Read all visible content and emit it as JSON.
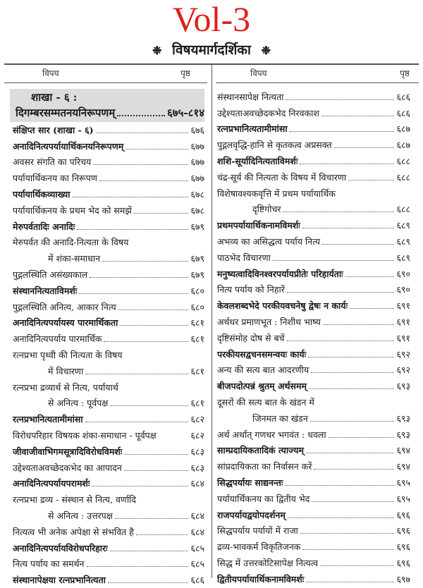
{
  "title": "Vol-3",
  "subtitle": "विषयमार्गदर्शिका",
  "ornament": "❉",
  "accent_color": "#e0201b",
  "columns_header": {
    "subject": "विपय",
    "page": "पृष्ठ"
  },
  "left": {
    "section": {
      "line1": "शाखा - ६ :",
      "line2": "दिगम्बरसम्मतनयनिरूपणम्",
      "page": "६७५-८१४"
    },
    "entries": [
      {
        "text": "संक्षिप्त सार (शाखा - ६)",
        "page": "६७६",
        "bold": true
      },
      {
        "text": "अनादिनित्यपर्यायार्थिकनयनिरूपणम्",
        "page": "६७७",
        "bold": true
      },
      {
        "text": "अवसर संगति का परिचय",
        "page": "६७७"
      },
      {
        "text": "पर्यायार्थिकनय का निरूपण",
        "page": "६७७"
      },
      {
        "text": "पर्यायार्थिकव्याख्या",
        "page": "६७८",
        "bold": true
      },
      {
        "text": "पर्यायार्थिकनय के प्रथम भेद को समझें",
        "page": "६७८"
      },
      {
        "text": "मेरुपर्वतादिः अनादिः",
        "page": "६७९",
        "bold": true
      },
      {
        "text": "मेरुपर्वत की अनादि-नित्यता के विषय",
        "page": ""
      },
      {
        "text": "में शंका-समाधान",
        "page": "६७९",
        "indent": true
      },
      {
        "text": "पुद्गलस्थिति असंख्यकाल",
        "page": "६७९"
      },
      {
        "text": "संस्थाननित्यताविमर्शः",
        "page": "६८०",
        "bold": true
      },
      {
        "text": "पुद्गलस्थिति अनित्य, आकार नित्य",
        "page": "६८०"
      },
      {
        "text": "अनादिनित्यपर्यायस्य पारमार्थिकता",
        "page": "६८१",
        "bold": true
      },
      {
        "text": "अनादिनित्यपर्याय पारमार्थिक",
        "page": "६८१"
      },
      {
        "text": "रत्नप्रभा पृथ्वी की नित्यता के विषय",
        "page": ""
      },
      {
        "text": "में विचारणा",
        "page": "६८१",
        "indent": true
      },
      {
        "text": "रत्नप्रभा द्रव्यार्थ से नित्य, पर्यायार्थ",
        "page": ""
      },
      {
        "text": "से अनित्य : पूर्वपक्ष",
        "page": "६८१",
        "indent": true
      },
      {
        "text": "रत्नप्रभानित्यतामीमांसा",
        "page": "६८२",
        "bold": true
      },
      {
        "text": "विरोधपरिहार विषयक शंका-समाधान - पूर्वपक्ष",
        "page": "६८२",
        "noleader": true
      },
      {
        "text": "जीवाजीवाभिगमसूत्रादिविरोधविमर्शः",
        "page": "६८३",
        "bold": true
      },
      {
        "text": "उद्देश्यताअवच्छेदकभेद का आपादन",
        "page": "६८३"
      },
      {
        "text": "अनादिनित्यपर्यायपरामर्शः",
        "page": "६८४",
        "bold": true
      },
      {
        "text": "रत्नप्रभा द्रव्य - संस्थान से नित्य, वर्णादि",
        "page": ""
      },
      {
        "text": "से अनित्य : उत्तरपक्ष",
        "page": "६८४",
        "indent": true
      },
      {
        "text": "नित्यत्व भी अनेक अपेक्षा से संभवित है",
        "page": "६८४"
      },
      {
        "text": "अनादिनित्यपर्यायविरोधपरिहारः",
        "page": "६८५",
        "bold": true
      },
      {
        "text": "नित्य पर्याय का समर्थन",
        "page": "६८५"
      },
      {
        "text": "संस्थानापेक्षया रत्नप्रभानित्यता",
        "page": "६८६",
        "bold": true
      }
    ]
  },
  "right": {
    "entries": [
      {
        "text": "संस्थानसापेक्ष नित्यता",
        "page": "६८६"
      },
      {
        "text": "उद्देश्यताअवच्छेदकभेद निरवकाश",
        "page": "६८६"
      },
      {
        "text": "रत्नप्रभानित्यतामीमांसा",
        "page": "६८७",
        "bold": true
      },
      {
        "text": "पुद्गलवृद्धि-हानि से कृतकत्व अप्रसक्त",
        "page": "६८७"
      },
      {
        "text": "शशि-सूर्यादिनित्यताविमर्शः",
        "page": "६८८",
        "bold": true
      },
      {
        "text": "चंद्र-सूर्य की नित्यता के विषय में विचारणा",
        "page": "६८८"
      },
      {
        "text": "विशेषावश्यकवृत्ति में प्रथम पर्यायार्थिक",
        "page": ""
      },
      {
        "text": "दृष्टिगोचर",
        "page": "६८८",
        "indent": true
      },
      {
        "text": "प्रथमपर्यायार्थिकनामविमर्शः",
        "page": "६८९",
        "bold": true
      },
      {
        "text": "अभव्य का असिद्धत्व पर्याय नित्य",
        "page": "६८९"
      },
      {
        "text": "पाठभेद विचारणा",
        "page": "६८९"
      },
      {
        "text": "मनुष्यत्वादिविनश्वरपर्यायप्रीतेः परिहार्यताः",
        "page": "६९०",
        "bold": true
      },
      {
        "text": "नित्य पर्याय को निहारें",
        "page": "६९०"
      },
      {
        "text": "केवलशब्दभेदे परकीयवचनेषु द्वेषः न कार्यः",
        "page": "६९१",
        "bold": true
      },
      {
        "text": "अर्थधर प्रमाणभूत : निशीथ भाष्य",
        "page": "६९१"
      },
      {
        "text": "दृष्टिसंमोह दोष से बचें",
        "page": "६९१"
      },
      {
        "text": "परकीयसद्वचनसमन्वयः कार्यः",
        "page": "६९२",
        "bold": true
      },
      {
        "text": "अन्य की सत्य बात आदरणीय",
        "page": "६९२"
      },
      {
        "text": "बीजपदोत्पन्नं श्रुतम् अर्थसमम्",
        "page": "६९३",
        "bold": true
      },
      {
        "text": "दूसरों की सत्य बात के खंडन में",
        "page": ""
      },
      {
        "text": "जिनमत का खंडन",
        "page": "६९३",
        "indent": true
      },
      {
        "text": "अर्थ अर्थात् गणधर भगवंत : धवला",
        "page": "६९३"
      },
      {
        "text": "साम्प्रदायिकतादिकं त्याज्यम्",
        "page": "६९४",
        "bold": true
      },
      {
        "text": "सांप्रदायिकता का निर्वासन करें",
        "page": "६९४"
      },
      {
        "text": "सिद्धपर्यायः साद्यनन्तः",
        "page": "६९५",
        "bold": true
      },
      {
        "text": "पर्यायार्थिकनय का द्वितीय भेद",
        "page": "६९५"
      },
      {
        "text": "राजपर्यायद्वयोपदर्शनम्",
        "page": "६९६",
        "bold": true
      },
      {
        "text": "सिद्धपर्याय पर्यायों में राजा",
        "page": "६९६"
      },
      {
        "text": "द्रव्य-भावकर्म विकृतिजनक",
        "page": "६९६"
      },
      {
        "text": "सिद्ध में उत्तरकोटिसापेक्ष नित्यत्व",
        "page": "६९६"
      },
      {
        "text": "द्वितीयपर्यायार्थिकनामविमर्शः",
        "page": "६९७",
        "bold": true
      }
    ]
  }
}
